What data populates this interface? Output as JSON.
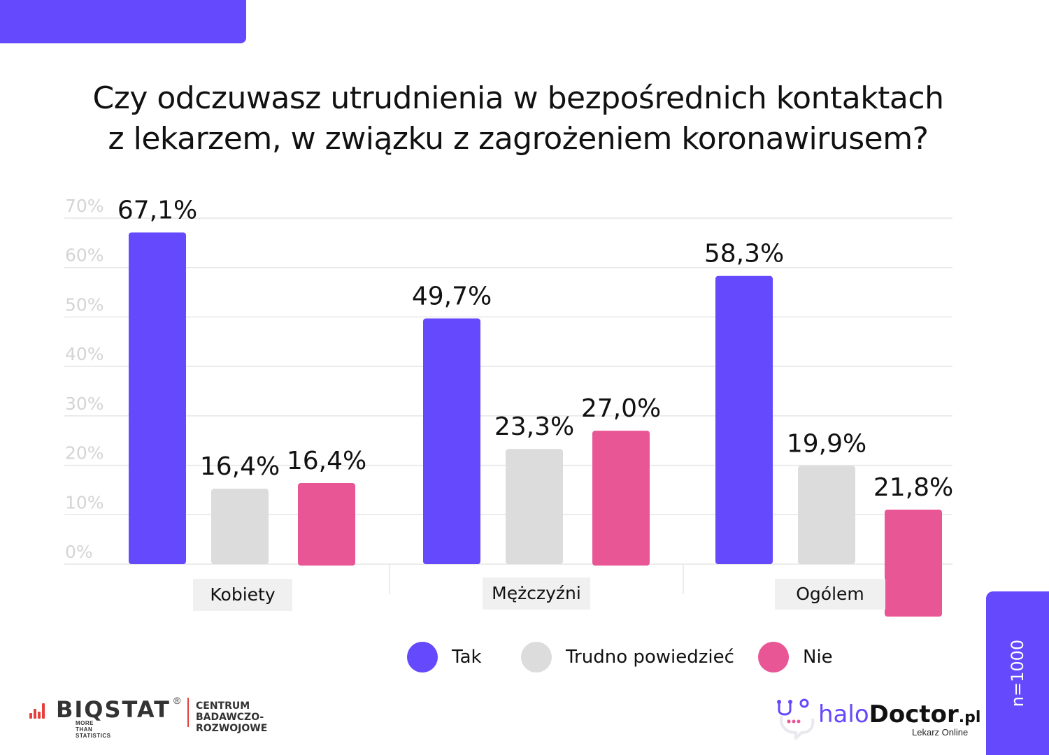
{
  "header": {
    "title_line1": "Czy odczuwasz utrudnienia w bezpośrednich kontaktach",
    "title_line2": "z lekarzem, w związku z zagrożeniem koronawirusem?"
  },
  "colors": {
    "accent": "#6449fd",
    "tak": "#6449fd",
    "trudno": "#dcdcdc",
    "nie": "#e85696",
    "grid": "#e6e6e6",
    "tick_text": "#d4d4d4",
    "category_box": "#f0f0f0"
  },
  "chart_data": {
    "type": "bar",
    "title": "Czy odczuwasz utrudnienia w bezpośrednich kontaktach z lekarzem, w związku z zagrożeniem koronawirusem?",
    "xlabel": "",
    "ylabel": "",
    "ylim": [
      0,
      70
    ],
    "yticks": [
      0,
      10,
      20,
      30,
      40,
      50,
      60,
      70
    ],
    "ytick_labels": [
      "0%",
      "10%",
      "20%",
      "30%",
      "40%",
      "50%",
      "60%",
      "70%"
    ],
    "grid": true,
    "categories": [
      "Kobiety",
      "Mężczyźni",
      "Ogólem"
    ],
    "series": [
      {
        "name": "Tak",
        "values": [
          67.1,
          49.7,
          58.3
        ],
        "labels": [
          "67,1%",
          "49,7%",
          "58,3%"
        ]
      },
      {
        "name": "Trudno powiedzieć",
        "values": [
          16.4,
          23.3,
          19.9
        ],
        "labels": [
          "16,4%",
          "23,3%",
          "19,9%"
        ]
      },
      {
        "name": "Nie",
        "values": [
          16.4,
          27.0,
          21.8
        ],
        "labels": [
          "16,4%",
          "27,0%",
          "21,8%"
        ]
      }
    ],
    "legend": [
      "Tak",
      "Trudno powiedzieć",
      "Nie"
    ],
    "legend_position": "bottom"
  },
  "legend": {
    "tak": "Tak",
    "trudno": "Trudno powiedzieć",
    "nie": "Nie"
  },
  "sample": "n=1000",
  "logos": {
    "biostat_name": "BIQSTAT",
    "biostat_reg": "®",
    "biostat_tagline": "MORE THAN STATISTICS",
    "biostat_center_line1": "CENTRUM",
    "biostat_center_line2": "BADAWCZO-ROZWOJOWE",
    "halo_part1": "halo",
    "halo_part2": "Doctor",
    "halo_part3": ".pl",
    "halo_sub": "Lekarz Online"
  }
}
